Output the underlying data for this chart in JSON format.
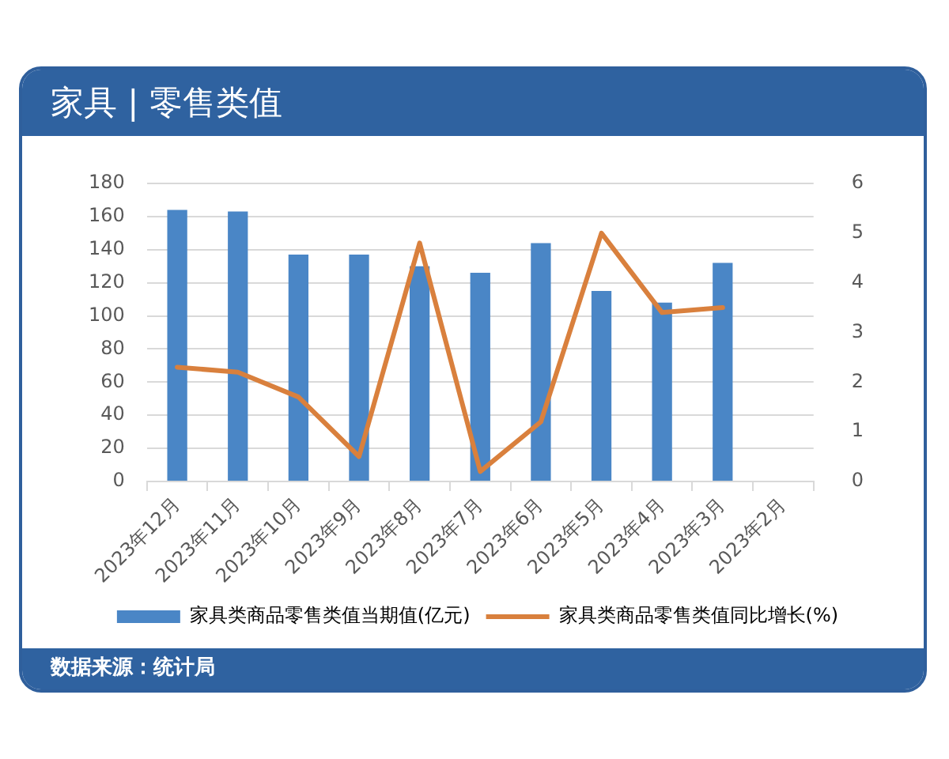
{
  "chart_data": {
    "type": "bar",
    "title": "家具 | 零售类值",
    "categories": [
      "2023年12月",
      "2023年11月",
      "2023年10月",
      "2023年9月",
      "2023年8月",
      "2023年7月",
      "2023年6月",
      "2023年5月",
      "2023年4月",
      "2023年3月",
      "2023年2月"
    ],
    "series": [
      {
        "name": "家具类商品零售类值当期值(亿元)",
        "color": "#4a86c6",
        "values": [
          164,
          163,
          137,
          137,
          130,
          126,
          144,
          115,
          108,
          132,
          null
        ]
      },
      {
        "name": "家具类商品零售类值同比增长(%)",
        "type": "line",
        "axis": "y2",
        "color": "#d9803d",
        "values": [
          2.3,
          2.2,
          1.7,
          0.5,
          4.8,
          0.2,
          1.2,
          5.0,
          3.4,
          3.5,
          null
        ]
      }
    ],
    "ylim": [
      0,
      180
    ],
    "yticks": [
      0,
      20,
      40,
      60,
      80,
      100,
      120,
      140,
      160,
      180
    ],
    "y2lim": [
      0,
      6
    ],
    "y2ticks": [
      0,
      1,
      2,
      3,
      4,
      5,
      6
    ],
    "grid": "y",
    "legend": "bottom",
    "marker": "none",
    "line_style": "solid",
    "annotations": [
      "数据来源：统计局"
    ]
  }
}
